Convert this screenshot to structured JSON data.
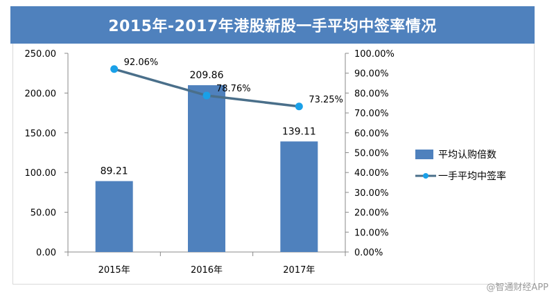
{
  "chart_data": {
    "type": "bar+line",
    "title": "2015年-2017年港股新股一手平均中签率情况",
    "categories": [
      "2015年",
      "2016年",
      "2017年"
    ],
    "series": [
      {
        "name": "平均认购倍数",
        "type": "bar",
        "axis": "left",
        "color": "#4f81bd",
        "values": [
          89.21,
          209.86,
          139.11
        ],
        "labels": [
          "89.21",
          "209.86",
          "139.11"
        ]
      },
      {
        "name": "一手平均中签率",
        "type": "line",
        "axis": "right",
        "color": "#4a6f8a",
        "marker_color": "#1aa0e8",
        "values": [
          92.06,
          78.76,
          73.25
        ],
        "labels": [
          "92.06%",
          "78.76%",
          "73.25%"
        ]
      }
    ],
    "y_left": {
      "min": 0,
      "max": 250,
      "ticks": [
        "0.00",
        "50.00",
        "100.00",
        "150.00",
        "200.00",
        "250.00"
      ]
    },
    "y_right": {
      "min": 0,
      "max": 100,
      "ticks": [
        "0.00%",
        "10.00%",
        "20.00%",
        "30.00%",
        "40.00%",
        "50.00%",
        "60.00%",
        "70.00%",
        "80.00%",
        "90.00%",
        "100.00%"
      ]
    },
    "legend_position": "right"
  },
  "watermark": "@智通财经APP"
}
